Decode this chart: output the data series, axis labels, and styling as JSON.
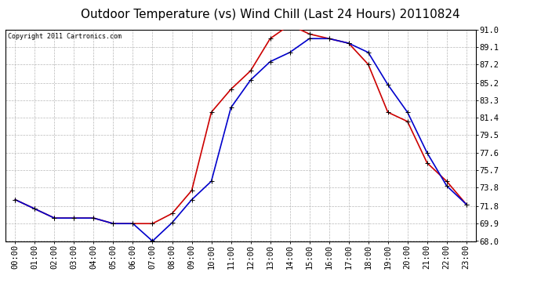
{
  "title": "Outdoor Temperature (vs) Wind Chill (Last 24 Hours) 20110824",
  "copyright": "Copyright 2011 Cartronics.com",
  "hours": [
    "00:00",
    "01:00",
    "02:00",
    "03:00",
    "04:00",
    "05:00",
    "06:00",
    "07:00",
    "08:00",
    "09:00",
    "10:00",
    "11:00",
    "12:00",
    "13:00",
    "14:00",
    "15:00",
    "16:00",
    "17:00",
    "18:00",
    "19:00",
    "20:00",
    "21:00",
    "22:00",
    "23:00"
  ],
  "temp": [
    72.5,
    71.5,
    70.5,
    70.5,
    70.5,
    69.9,
    69.9,
    69.9,
    71.0,
    73.5,
    82.0,
    84.5,
    86.5,
    90.0,
    91.5,
    90.5,
    90.0,
    89.5,
    87.2,
    82.0,
    81.0,
    76.5,
    74.5,
    72.0
  ],
  "wind_chill": [
    72.5,
    71.5,
    70.5,
    70.5,
    70.5,
    69.9,
    69.9,
    68.0,
    70.0,
    72.5,
    74.5,
    82.5,
    85.5,
    87.5,
    88.5,
    90.0,
    90.0,
    89.5,
    88.5,
    85.0,
    82.0,
    77.6,
    74.0,
    72.0
  ],
  "temp_color": "#cc0000",
  "wind_chill_color": "#0000cc",
  "bg_color": "#ffffff",
  "plot_bg_color": "#ffffff",
  "grid_color": "#b0b0b0",
  "ylim": [
    68.0,
    91.0
  ],
  "yticks": [
    68.0,
    69.9,
    71.8,
    73.8,
    75.7,
    77.6,
    79.5,
    81.4,
    83.3,
    85.2,
    87.2,
    89.1,
    91.0
  ],
  "title_fontsize": 11,
  "copyright_fontsize": 6,
  "tick_fontsize": 7.5,
  "marker": "+",
  "markersize": 5,
  "linewidth": 1.2
}
